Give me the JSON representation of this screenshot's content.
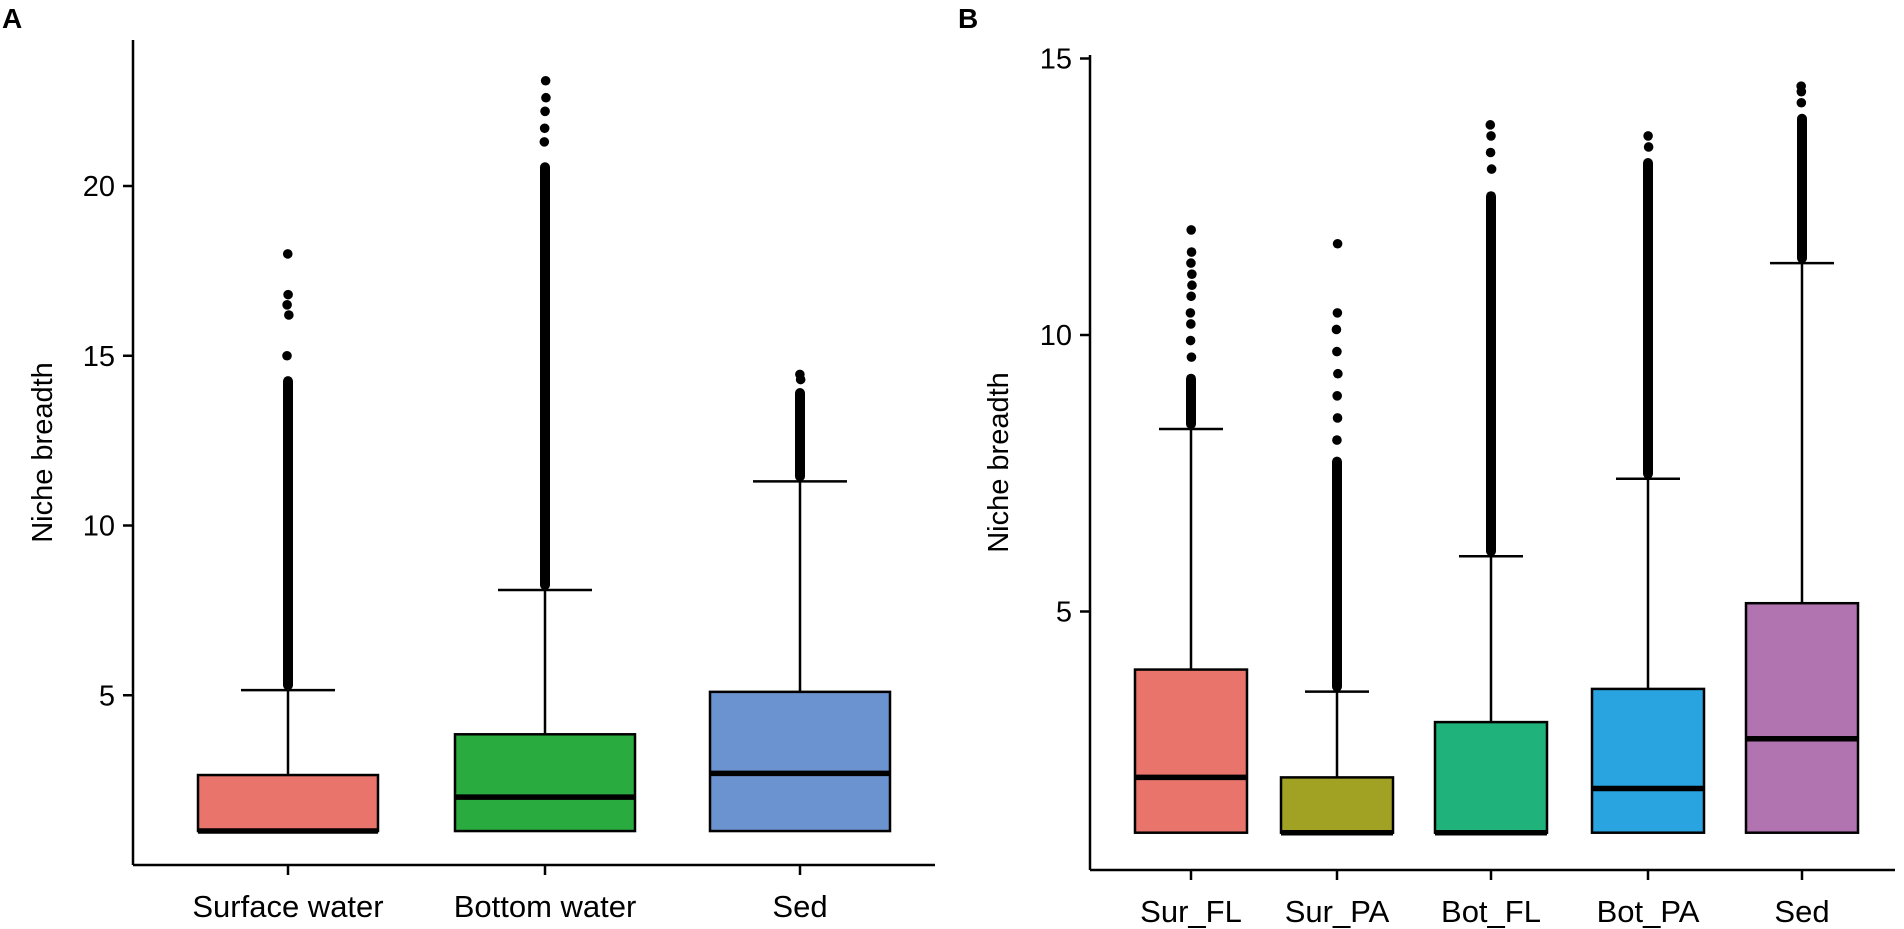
{
  "chart_data": [
    {
      "panel_label": "A",
      "type": "box",
      "title": "",
      "xlabel": "",
      "ylabel": "Niche breadth",
      "ylim": [
        0,
        24
      ],
      "yticks": [
        5,
        10,
        15,
        20
      ],
      "categories": [
        "Surface water",
        "Bottom water",
        "Sed"
      ],
      "colors": [
        "#e8746b",
        "#2aab3f",
        "#6b93cf"
      ],
      "boxes": [
        {
          "min": 1.0,
          "q1": 1.0,
          "median": 1.0,
          "q3": 2.65,
          "max": 5.15,
          "outlier_min": 5.15,
          "outlier_max": 14.4,
          "sparse_outliers": [
            15.0,
            16.2,
            16.5,
            16.8,
            18.0
          ]
        },
        {
          "min": 1.0,
          "q1": 1.0,
          "median": 2.0,
          "q3": 3.85,
          "max": 8.1,
          "outlier_min": 8.1,
          "outlier_max": 20.7,
          "sparse_outliers": [
            21.3,
            21.7,
            22.2,
            22.6,
            23.1
          ]
        },
        {
          "min": 1.0,
          "q1": 1.0,
          "median": 2.7,
          "q3": 5.1,
          "max": 11.3,
          "outlier_min": 11.3,
          "outlier_max": 14.05,
          "sparse_outliers": [
            14.3,
            14.45
          ]
        }
      ]
    },
    {
      "panel_label": "B",
      "type": "box",
      "title": "",
      "xlabel": "",
      "ylabel": "Niche breadth",
      "ylim": [
        0,
        15
      ],
      "yticks": [
        5,
        10,
        15
      ],
      "categories": [
        "Sur_FL",
        "Sur_PA",
        "Bot_FL",
        "Bot_PA",
        "Sed"
      ],
      "colors": [
        "#e8746b",
        "#a1a223",
        "#1fb27b",
        "#29a4e0",
        "#b174b1"
      ],
      "boxes": [
        {
          "min": 1.0,
          "q1": 1.0,
          "median": 2.0,
          "q3": 3.95,
          "max": 8.3,
          "outlier_min": 8.3,
          "outlier_max": 9.3,
          "sparse_outliers": [
            9.6,
            9.9,
            10.2,
            10.4,
            10.7,
            10.9,
            11.1,
            11.3,
            11.5,
            11.9
          ]
        },
        {
          "min": 1.0,
          "q1": 1.0,
          "median": 1.0,
          "q3": 2.0,
          "max": 3.55,
          "outlier_min": 3.55,
          "outlier_max": 7.8,
          "sparse_outliers": [
            8.1,
            8.5,
            8.9,
            9.3,
            9.7,
            10.1,
            10.4,
            11.65
          ]
        },
        {
          "min": 1.0,
          "q1": 1.0,
          "median": 1.0,
          "q3": 3.0,
          "max": 6.0,
          "outlier_min": 6.0,
          "outlier_max": 12.6,
          "sparse_outliers": [
            13.0,
            13.3,
            13.6,
            13.8
          ]
        },
        {
          "min": 1.0,
          "q1": 1.0,
          "median": 1.8,
          "q3": 3.6,
          "max": 7.4,
          "outlier_min": 7.4,
          "outlier_max": 13.2,
          "sparse_outliers": [
            13.4,
            13.6
          ]
        },
        {
          "min": 1.0,
          "q1": 1.0,
          "median": 2.7,
          "q3": 5.15,
          "max": 11.3,
          "outlier_min": 11.3,
          "outlier_max": 14.0,
          "sparse_outliers": [
            14.2,
            14.4,
            14.5
          ]
        }
      ]
    }
  ]
}
